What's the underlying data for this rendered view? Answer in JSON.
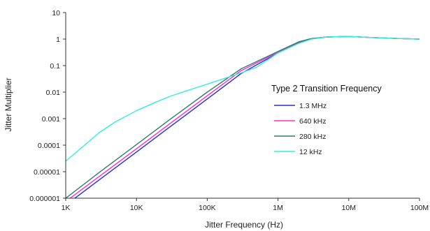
{
  "chart_data": {
    "type": "line",
    "title": "",
    "xlabel": "Jitter Frequency (Hz)",
    "ylabel": "Jitter Multiplier",
    "x_scale": "log",
    "y_scale": "log",
    "xlim": [
      1000,
      100000000
    ],
    "ylim": [
      1e-06,
      10
    ],
    "x_ticks": [
      {
        "value": 1000,
        "label": "1K"
      },
      {
        "value": 10000,
        "label": "10K"
      },
      {
        "value": 100000,
        "label": "100K"
      },
      {
        "value": 1000000,
        "label": "1M"
      },
      {
        "value": 10000000,
        "label": "10M"
      },
      {
        "value": 100000000,
        "label": "100M"
      }
    ],
    "y_ticks": [
      {
        "value": 10,
        "label": "10"
      },
      {
        "value": 1,
        "label": "1"
      },
      {
        "value": 0.1,
        "label": "0.1"
      },
      {
        "value": 0.01,
        "label": "0.01"
      },
      {
        "value": 0.001,
        "label": "0.001"
      },
      {
        "value": 0.0001,
        "label": "0.0001"
      },
      {
        "value": 1e-05,
        "label": "0.00001"
      },
      {
        "value": 1e-06,
        "label": "0.000001"
      }
    ],
    "grid": false,
    "legend": {
      "title": "Type 2 Transition Frequency",
      "position": "right"
    },
    "series": [
      {
        "name": "1.3 MHz",
        "color": "#2b2bd6",
        "points": [
          [
            1000,
            5.5e-07
          ],
          [
            3000,
            5e-06
          ],
          [
            10000,
            5.5e-05
          ],
          [
            30000,
            0.0005
          ],
          [
            100000,
            0.0055
          ],
          [
            300000,
            0.05
          ],
          [
            1000000,
            0.3
          ],
          [
            2000000,
            0.72
          ],
          [
            3000000,
            1.02
          ],
          [
            5000000,
            1.2
          ],
          [
            10000000,
            1.25
          ],
          [
            20000000,
            1.15
          ],
          [
            50000000,
            1.05
          ],
          [
            100000000,
            1.0
          ]
        ]
      },
      {
        "name": "640 kHz",
        "color": "#ff2bd6",
        "points": [
          [
            1000,
            7.5e-07
          ],
          [
            3000,
            6.7e-06
          ],
          [
            10000,
            7.3e-05
          ],
          [
            30000,
            0.00066
          ],
          [
            100000,
            0.0073
          ],
          [
            300000,
            0.064
          ],
          [
            1000000,
            0.32
          ],
          [
            2000000,
            0.78
          ],
          [
            3000000,
            1.05
          ],
          [
            5000000,
            1.2
          ],
          [
            10000000,
            1.25
          ],
          [
            20000000,
            1.15
          ],
          [
            50000000,
            1.05
          ],
          [
            100000000,
            1.0
          ]
        ]
      },
      {
        "name": "280 kHz",
        "color": "#2e7d6e",
        "points": [
          [
            1000,
            1e-06
          ],
          [
            3000,
            9.5e-06
          ],
          [
            10000,
            0.000105
          ],
          [
            30000,
            0.00095
          ],
          [
            100000,
            0.01
          ],
          [
            300000,
            0.075
          ],
          [
            1000000,
            0.34
          ],
          [
            2000000,
            0.8
          ],
          [
            3000000,
            1.05
          ],
          [
            5000000,
            1.2
          ],
          [
            10000000,
            1.25
          ],
          [
            20000000,
            1.15
          ],
          [
            50000000,
            1.05
          ],
          [
            100000000,
            1.0
          ]
        ]
      },
      {
        "name": "12 kHz",
        "color": "#33eedd",
        "points": [
          [
            1000,
            2.5e-05
          ],
          [
            2000,
            0.00012
          ],
          [
            3000,
            0.0003
          ],
          [
            5000,
            0.00075
          ],
          [
            10000,
            0.002
          ],
          [
            20000,
            0.0045
          ],
          [
            30000,
            0.007
          ],
          [
            50000,
            0.011
          ],
          [
            100000,
            0.02
          ],
          [
            200000,
            0.037
          ],
          [
            300000,
            0.053
          ],
          [
            500000,
            0.087
          ],
          [
            1000000,
            0.3
          ],
          [
            2000000,
            0.7
          ],
          [
            3000000,
            1.0
          ],
          [
            5000000,
            1.2
          ],
          [
            10000000,
            1.25
          ],
          [
            20000000,
            1.15
          ],
          [
            50000000,
            1.05
          ],
          [
            100000000,
            1.0
          ]
        ]
      }
    ]
  }
}
